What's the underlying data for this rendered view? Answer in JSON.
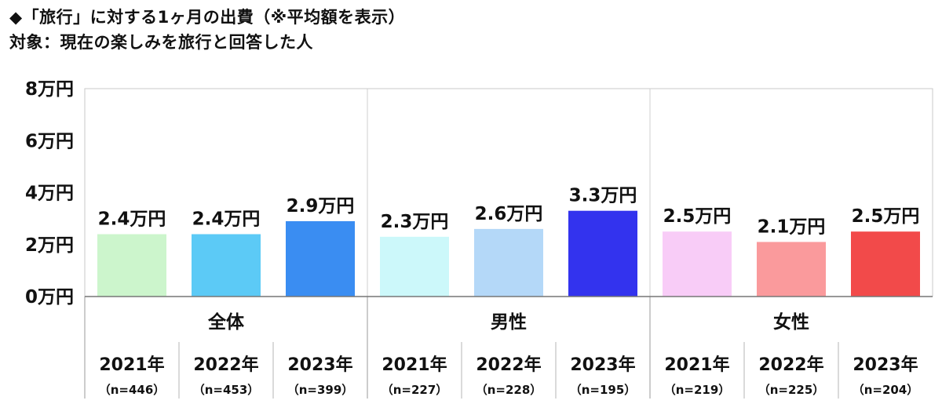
{
  "header": {
    "title": "◆「旅行」に対する1ヶ月の出費（※平均額を表示）",
    "subtitle": "対象：現在の楽しみを旅行と回答した人"
  },
  "chart_data": {
    "type": "bar",
    "title": "◆「旅行」に対する1ヶ月の出費（※平均額を表示）",
    "subtitle": "対象：現在の楽しみを旅行と回答した人",
    "unit": "万円",
    "ylim": [
      0,
      8
    ],
    "yticks": [
      0,
      2,
      4,
      6,
      8
    ],
    "ytick_labels": [
      "0万円",
      "2万円",
      "4万円",
      "6万円",
      "8万円"
    ],
    "grid": false,
    "groups": [
      "全体",
      "男性",
      "女性"
    ],
    "categories": [
      "2021年",
      "2022年",
      "2023年",
      "2021年",
      "2022年",
      "2023年",
      "2021年",
      "2022年",
      "2023年"
    ],
    "n_labels": [
      "（n=446）",
      "（n=453）",
      "（n=399）",
      "（n=227）",
      "（n=228）",
      "（n=195）",
      "（n=219）",
      "（n=225）",
      "（n=204）"
    ],
    "values": [
      2.4,
      2.4,
      2.9,
      2.3,
      2.6,
      3.3,
      2.5,
      2.1,
      2.5
    ],
    "value_labels": [
      "2.4万円",
      "2.4万円",
      "2.9万円",
      "2.3万円",
      "2.6万円",
      "3.3万円",
      "2.5万円",
      "2.1万円",
      "2.5万円"
    ],
    "colors": [
      "#ccf5cc",
      "#5ccaf6",
      "#3a8df2",
      "#ccf8fa",
      "#b4d8f8",
      "#3333ee",
      "#f8ccf7",
      "#fa9a9c",
      "#f24a4a"
    ]
  }
}
